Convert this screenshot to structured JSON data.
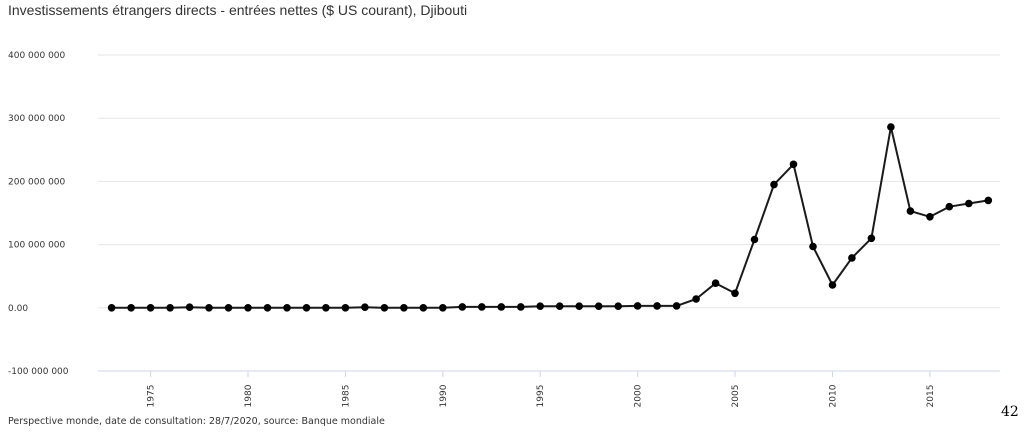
{
  "chart_data": {
    "type": "line",
    "title": "Investissements étrangers directs - entrées nettes ($ US courant), Djibouti",
    "xlabel": "",
    "ylabel": "",
    "x": [
      1973,
      1974,
      1975,
      1976,
      1977,
      1978,
      1979,
      1980,
      1981,
      1982,
      1983,
      1984,
      1985,
      1986,
      1987,
      1988,
      1989,
      1990,
      1991,
      1992,
      1993,
      1994,
      1995,
      1996,
      1997,
      1998,
      1999,
      2000,
      2001,
      2002,
      2003,
      2004,
      2005,
      2006,
      2007,
      2008,
      2009,
      2010,
      2011,
      2012,
      2013,
      2014,
      2015,
      2016,
      2017,
      2018
    ],
    "series": [
      {
        "values": [
          0,
          0,
          0,
          0,
          1000000,
          0,
          0,
          0,
          0,
          0,
          0,
          0,
          0,
          1000000,
          0,
          0,
          0,
          0,
          1500000,
          1500000,
          1500000,
          1500000,
          2500000,
          2500000,
          2500000,
          2500000,
          2500000,
          3000000,
          3000000,
          3000000,
          14000000,
          39000000,
          23000000,
          108000000,
          195000000,
          227000000,
          97000000,
          36000000,
          79000000,
          110000000,
          286000000,
          153000000,
          144000000,
          160000000,
          165000000,
          170000000
        ]
      }
    ],
    "ylim": [
      -100000000,
      400000000
    ],
    "xlim": [
      1972.3,
      2018.6
    ],
    "y_ticks": [
      {
        "value": 400000000,
        "label": "400 000 000"
      },
      {
        "value": 300000000,
        "label": "300 000 000"
      },
      {
        "value": 200000000,
        "label": "200 000 000"
      },
      {
        "value": 100000000,
        "label": "100 000 000"
      },
      {
        "value": 0,
        "label": "0.00"
      },
      {
        "value": -100000000,
        "label": "-100 000 000"
      }
    ],
    "x_ticks": [
      1975,
      1980,
      1985,
      1990,
      1995,
      2000,
      2005,
      2010,
      2015
    ],
    "grid": true,
    "colors": {
      "line": "#1a1a1a",
      "point": "#000000",
      "grid": "#e6e6e6",
      "axis": "#ccd6eb"
    }
  },
  "footer": {
    "source": "Perspective monde, date de consultation: 28/7/2020, source: Banque mondiale",
    "page_number": "42"
  }
}
